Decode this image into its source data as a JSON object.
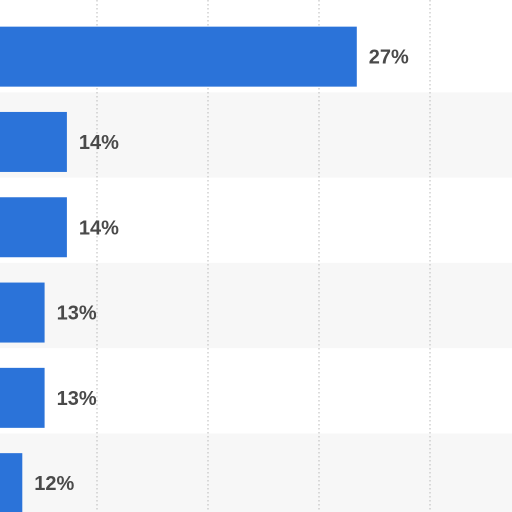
{
  "colors": {
    "bar": "#2b73d9",
    "band": "#f7f7f7",
    "grid": "#b8b8b8",
    "label": "#4a4a4a"
  },
  "chart_data": {
    "type": "bar",
    "orientation": "horizontal",
    "categories": [
      "",
      "",
      "",
      "",
      "",
      ""
    ],
    "values": [
      27,
      14,
      14,
      13,
      13,
      12
    ],
    "data_labels": [
      "27%",
      "14%",
      "14%",
      "13%",
      "13%",
      "12%"
    ],
    "unit": "%",
    "xlim": [
      11,
      30
    ],
    "grid": true,
    "title": "",
    "xlabel": "",
    "ylabel": ""
  }
}
